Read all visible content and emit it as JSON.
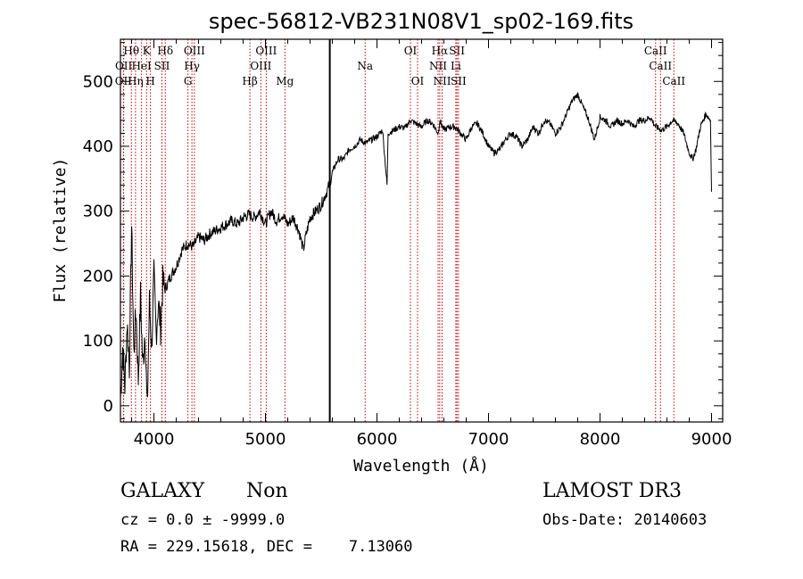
{
  "chart_data": {
    "type": "line",
    "title": "spec-56812-VB231N08V1_sp02-169.fits",
    "xlabel": "Wavelength (Å)",
    "ylabel": "Flux (relative)",
    "xlim": [
      3700,
      9100
    ],
    "ylim": [
      -25,
      565
    ],
    "xticks": [
      4000,
      5000,
      6000,
      7000,
      8000,
      9000
    ],
    "yticks": [
      0,
      100,
      200,
      300,
      400,
      500
    ],
    "series": [
      {
        "x": [
          3700,
          3720,
          3740,
          3760,
          3780,
          3800,
          3820,
          3840,
          3860,
          3880,
          3900,
          3920,
          3940,
          3960,
          3980,
          4000,
          4020,
          4040,
          4060,
          4080,
          4100,
          4150,
          4200,
          4250,
          4300,
          4350,
          4400,
          4450,
          4500,
          4550,
          4600,
          4650,
          4700,
          4750,
          4800,
          4850,
          4900,
          4950,
          5000,
          5050,
          5100,
          5150,
          5200,
          5250,
          5300,
          5340,
          5360,
          5400,
          5450,
          5500,
          5550,
          5580,
          5600,
          5650,
          5700,
          5750,
          5800,
          5850,
          5900,
          5950,
          6000,
          6050,
          6090,
          6100,
          6150,
          6200,
          6250,
          6300,
          6350,
          6400,
          6450,
          6500,
          6550,
          6563,
          6600,
          6650,
          6700,
          6750,
          6800,
          6850,
          6900,
          6950,
          7000,
          7050,
          7100,
          7150,
          7200,
          7250,
          7300,
          7350,
          7400,
          7450,
          7500,
          7550,
          7600,
          7650,
          7700,
          7750,
          7800,
          7850,
          7900,
          7950,
          8000,
          8050,
          8100,
          8150,
          8200,
          8250,
          8300,
          8350,
          8400,
          8450,
          8500,
          8550,
          8600,
          8650,
          8700,
          8750,
          8800,
          8830,
          8860,
          8900,
          8950,
          8990,
          9000
        ],
        "values": [
          10,
          90,
          30,
          130,
          60,
          280,
          80,
          150,
          40,
          170,
          60,
          120,
          -10,
          160,
          90,
          200,
          110,
          160,
          120,
          190,
          180,
          200,
          215,
          240,
          250,
          245,
          260,
          255,
          265,
          270,
          275,
          280,
          285,
          280,
          290,
          295,
          290,
          300,
          280,
          300,
          285,
          295,
          280,
          290,
          270,
          240,
          260,
          290,
          300,
          310,
          330,
          345,
          360,
          380,
          380,
          395,
          400,
          410,
          405,
          410,
          415,
          425,
          340,
          420,
          425,
          430,
          428,
          440,
          435,
          430,
          440,
          435,
          420,
          440,
          425,
          430,
          430,
          420,
          410,
          430,
          435,
          420,
          400,
          390,
          395,
          410,
          420,
          415,
          400,
          410,
          430,
          420,
          440,
          435,
          420,
          430,
          450,
          470,
          480,
          460,
          440,
          410,
          445,
          440,
          430,
          440,
          435,
          440,
          430,
          440,
          440,
          445,
          430,
          425,
          430,
          440,
          435,
          420,
          390,
          380,
          395,
          430,
          450,
          440,
          330
        ]
      }
    ],
    "spectral_lines": [
      {
        "label": "OII",
        "wl": 3727,
        "row": 3
      },
      {
        "label": "OII",
        "wl": 3729,
        "row": 2
      },
      {
        "label": "Hθ",
        "wl": 3798,
        "row": 1
      },
      {
        "label": "Hη",
        "wl": 3835,
        "row": 3
      },
      {
        "label": "HeI",
        "wl": 3889,
        "row": 2
      },
      {
        "label": "K",
        "wl": 3934,
        "row": 1
      },
      {
        "label": "H",
        "wl": 3969,
        "row": 3
      },
      {
        "label": "Hδ",
        "wl": 4102,
        "row": 1
      },
      {
        "label": "SII",
        "wl": 4072,
        "row": 2
      },
      {
        "label": "Hγ",
        "wl": 4341,
        "row": 2
      },
      {
        "label": "G",
        "wl": 4305,
        "row": 3
      },
      {
        "label": "OIII",
        "wl": 4363,
        "row": 1
      },
      {
        "label": "Hβ",
        "wl": 4861,
        "row": 3
      },
      {
        "label": "OIII",
        "wl": 4959,
        "row": 2
      },
      {
        "label": "OIII",
        "wl": 5007,
        "row": 1
      },
      {
        "label": "Mg",
        "wl": 5175,
        "row": 3
      },
      {
        "label": "Na",
        "wl": 5894,
        "row": 2
      },
      {
        "label": "OI",
        "wl": 6300,
        "row": 1
      },
      {
        "label": "OI",
        "wl": 6364,
        "row": 3
      },
      {
        "label": "NII",
        "wl": 6548,
        "row": 2
      },
      {
        "label": "Hα",
        "wl": 6563,
        "row": 1
      },
      {
        "label": "NII",
        "wl": 6584,
        "row": 3
      },
      {
        "label": "SII",
        "wl": 6717,
        "row": 1
      },
      {
        "label": "Li",
        "wl": 6707,
        "row": 2
      },
      {
        "label": "SII",
        "wl": 6731,
        "row": 3
      },
      {
        "label": "CaII",
        "wl": 8498,
        "row": 1
      },
      {
        "label": "CaII",
        "wl": 8542,
        "row": 2
      },
      {
        "label": "CaII",
        "wl": 8662,
        "row": 3
      }
    ],
    "marker_wl": 5577,
    "line_color": "#000000",
    "marker_line_color": "#c00000",
    "grid": false
  },
  "info": {
    "class": "GALAXY",
    "subclass": "Non",
    "survey": "LAMOST DR3",
    "cz": "cz = 0.0 ± -9999.0",
    "obsdate": "Obs-Date: 20140603",
    "radec": "RA = 229.15618, DEC =    7.13060"
  }
}
